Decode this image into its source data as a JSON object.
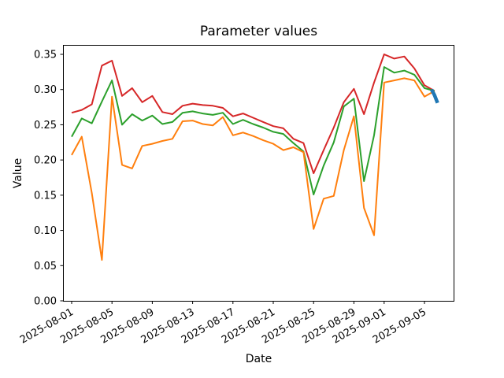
{
  "figure": {
    "title": "Parameter values",
    "xlabel": "Date",
    "ylabel": "Value",
    "background_color": "#ffffff",
    "spine_color": "#000000"
  },
  "chart_data": {
    "type": "line",
    "title": "Parameter values",
    "xlabel": "Date",
    "ylabel": "Value",
    "grid": false,
    "legend": null,
    "ylim": [
      0.0,
      0.3623
    ],
    "yticks": [
      0.0,
      0.05,
      0.1,
      0.15,
      0.2,
      0.25,
      0.3,
      0.35
    ],
    "ytick_labels": [
      "0.00",
      "0.05",
      "0.10",
      "0.15",
      "0.20",
      "0.25",
      "0.30",
      "0.35"
    ],
    "xtick_labels": [
      "2025-08-01",
      "2025-08-05",
      "2025-08-09",
      "2025-08-13",
      "2025-08-17",
      "2025-08-21",
      "2025-08-25",
      "2025-08-29",
      "2025-09-01",
      "2025-09-05"
    ],
    "xtick_day_offsets": [
      0,
      4,
      8,
      12,
      16,
      20,
      24,
      28,
      31,
      35
    ],
    "xtick_rotation_deg": 30,
    "x_dates": [
      "2025-08-01",
      "2025-08-02",
      "2025-08-03",
      "2025-08-04",
      "2025-08-05",
      "2025-08-06",
      "2025-08-07",
      "2025-08-08",
      "2025-08-09",
      "2025-08-10",
      "2025-08-11",
      "2025-08-12",
      "2025-08-13",
      "2025-08-14",
      "2025-08-15",
      "2025-08-16",
      "2025-08-17",
      "2025-08-18",
      "2025-08-19",
      "2025-08-20",
      "2025-08-21",
      "2025-08-22",
      "2025-08-23",
      "2025-08-24",
      "2025-08-25",
      "2025-08-26",
      "2025-08-27",
      "2025-08-28",
      "2025-08-29",
      "2025-08-30",
      "2025-08-31",
      "2025-09-01",
      "2025-09-02",
      "2025-09-03",
      "2025-09-04",
      "2025-09-05",
      "2025-09-06"
    ],
    "series": [
      {
        "name": "red-series",
        "color": "#d62728",
        "linewidth": 2,
        "values": [
          0.267,
          0.271,
          0.279,
          0.334,
          0.341,
          0.291,
          0.302,
          0.282,
          0.291,
          0.268,
          0.265,
          0.277,
          0.28,
          0.278,
          0.277,
          0.274,
          0.262,
          0.266,
          0.26,
          0.254,
          0.248,
          0.245,
          0.23,
          0.224,
          0.181,
          0.214,
          0.246,
          0.282,
          0.301,
          0.265,
          0.31,
          0.35,
          0.344,
          0.347,
          0.33,
          0.306,
          0.298
        ]
      },
      {
        "name": "green-series",
        "color": "#2ca02c",
        "linewidth": 2,
        "values": [
          0.233,
          0.259,
          0.252,
          0.283,
          0.313,
          0.25,
          0.265,
          0.256,
          0.263,
          0.251,
          0.254,
          0.267,
          0.269,
          0.266,
          0.264,
          0.267,
          0.251,
          0.257,
          0.251,
          0.246,
          0.24,
          0.237,
          0.224,
          0.212,
          0.151,
          0.192,
          0.225,
          0.276,
          0.287,
          0.17,
          0.235,
          0.332,
          0.324,
          0.327,
          0.321,
          0.302,
          0.298
        ]
      },
      {
        "name": "orange-series",
        "color": "#ff7f0e",
        "linewidth": 2,
        "values": [
          0.207,
          0.233,
          0.153,
          0.058,
          0.29,
          0.193,
          0.188,
          0.22,
          0.223,
          0.227,
          0.23,
          0.255,
          0.256,
          0.251,
          0.249,
          0.261,
          0.235,
          0.239,
          0.234,
          0.228,
          0.223,
          0.214,
          0.218,
          0.211,
          0.102,
          0.145,
          0.149,
          0.214,
          0.262,
          0.132,
          0.093,
          0.31,
          0.313,
          0.316,
          0.313,
          0.29,
          0.298
        ]
      },
      {
        "name": "blue-series",
        "color": "#1f77b4",
        "linewidth": 4.5,
        "note": "short thick segment at the very end of the other series (~2025-09-06), sloping down",
        "x_day_offsets": [
          35.7,
          36.0,
          36.3
        ],
        "values": [
          0.3,
          0.292,
          0.281
        ]
      }
    ]
  }
}
